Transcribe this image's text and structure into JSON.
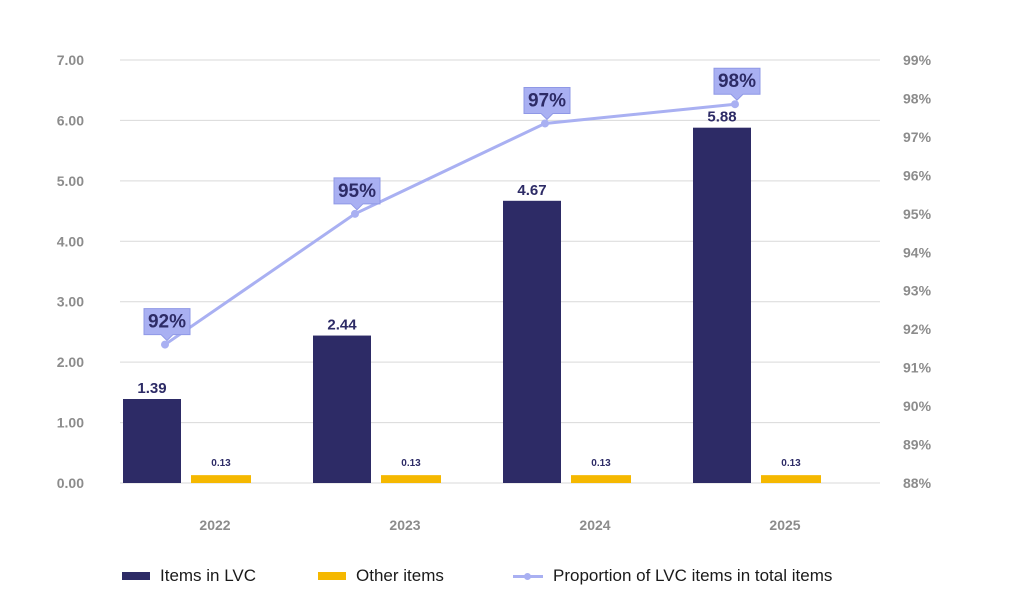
{
  "chart_data": {
    "type": "bar",
    "categories": [
      "2022",
      "2023",
      "2024",
      "2025"
    ],
    "series": [
      {
        "name": "Items in LVC",
        "type": "bar",
        "axis": "left",
        "color": "#2d2b66",
        "values": [
          1.39,
          2.44,
          4.67,
          5.88
        ],
        "labels": [
          "1.39",
          "2.44",
          "4.67",
          "5.88"
        ]
      },
      {
        "name": "Other items",
        "type": "bar",
        "axis": "left",
        "color": "#f5b800",
        "values": [
          0.13,
          0.13,
          0.13,
          0.13
        ],
        "labels": [
          "0.13",
          "0.13",
          "0.13",
          "0.13"
        ]
      },
      {
        "name": "Proportion of LVC items in total items",
        "type": "line",
        "axis": "right",
        "color": "#a9b0f2",
        "values": [
          91.6,
          95.0,
          97.35,
          97.85
        ],
        "labels": [
          "92%",
          "95%",
          "97%",
          "98%"
        ]
      }
    ],
    "ylim": [
      0,
      7
    ],
    "yticks": [
      "0.00",
      "1.00",
      "2.00",
      "3.00",
      "4.00",
      "5.00",
      "6.00",
      "7.00"
    ],
    "y2lim": [
      88,
      99
    ],
    "y2ticks": [
      "88%",
      "89%",
      "90%",
      "91%",
      "92%",
      "93%",
      "94%",
      "95%",
      "96%",
      "97%",
      "98%",
      "99%"
    ],
    "grid": true,
    "legend_position": "bottom"
  }
}
